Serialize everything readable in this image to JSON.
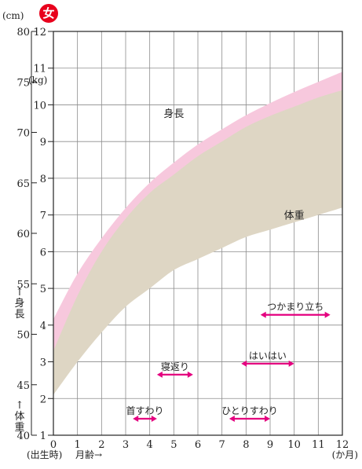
{
  "badge": {
    "glyph": "女",
    "color": "#e8001c"
  },
  "colors": {
    "height_band": "#f7c8dd",
    "weight_band": "#ded6c4",
    "arrow": "#e4007f",
    "grid": "#8c8c8c"
  },
  "chart_data": {
    "type": "area",
    "x_ticks": [
      0,
      1,
      2,
      3,
      4,
      5,
      6,
      7,
      8,
      9,
      10,
      11,
      12
    ],
    "x_tick_labels": [
      "0",
      "1",
      "2",
      "3",
      "4",
      "5",
      "6",
      "7",
      "8",
      "9",
      "10",
      "11",
      "12"
    ],
    "x_caption_left": "(出生時)",
    "x_axis_label": "月齢→",
    "x_unit": "(か月)",
    "height_axis": {
      "unit": "(cm)",
      "range": [
        40,
        80
      ],
      "ticks": [
        40,
        45,
        50,
        55,
        60,
        65,
        70,
        75,
        80
      ],
      "tick_labels": [
        "40",
        "45",
        "50",
        "55",
        "60",
        "65",
        "70",
        "75",
        "80"
      ],
      "label_arrow": "↑",
      "label_text": "身長"
    },
    "weight_axis": {
      "unit": "(kg)",
      "range": [
        1,
        12
      ],
      "ticks": [
        1,
        2,
        3,
        4,
        5,
        6,
        7,
        8,
        9,
        10,
        11,
        12
      ],
      "tick_labels": [
        "1",
        "2",
        "3",
        "4",
        "5",
        "6",
        "7",
        "8",
        "9",
        "10",
        "11",
        "12"
      ],
      "label_arrow": "↑",
      "label_text": "体重"
    },
    "grid": true,
    "series": [
      {
        "name": "身長",
        "axis": "height",
        "x": [
          0,
          1,
          2,
          3,
          4,
          5,
          6,
          7,
          8,
          9,
          10,
          11,
          12
        ],
        "lower": [
          44.5,
          49.0,
          52.5,
          55.5,
          58.0,
          60.0,
          61.8,
          63.3,
          64.6,
          65.8,
          66.8,
          67.8,
          68.5
        ],
        "upper": [
          51.5,
          56.0,
          59.5,
          62.5,
          65.0,
          67.0,
          68.8,
          70.3,
          71.7,
          72.9,
          74.0,
          75.0,
          76.0
        ]
      },
      {
        "name": "体重",
        "axis": "weight",
        "x": [
          0,
          1,
          2,
          3,
          4,
          5,
          6,
          7,
          8,
          9,
          10,
          11,
          12
        ],
        "lower": [
          2.1,
          3.0,
          3.8,
          4.5,
          5.0,
          5.5,
          5.8,
          6.1,
          6.4,
          6.6,
          6.8,
          7.0,
          7.2
        ],
        "upper": [
          3.3,
          4.8,
          6.0,
          6.9,
          7.6,
          8.1,
          8.6,
          9.0,
          9.4,
          9.7,
          9.95,
          10.2,
          10.4
        ]
      }
    ],
    "milestones": [
      {
        "label": "首すわり",
        "start": 3.3,
        "end": 4.3,
        "y": 1.45
      },
      {
        "label": "寝返り",
        "start": 4.3,
        "end": 5.8,
        "y": 2.65
      },
      {
        "label": "ひとりすわり",
        "start": 7.3,
        "end": 9.0,
        "y": 1.45
      },
      {
        "label": "はいはい",
        "start": 7.8,
        "end": 10.0,
        "y": 2.95
      },
      {
        "label": "つかまり立ち",
        "start": 8.6,
        "end": 11.5,
        "y": 4.28
      }
    ]
  }
}
